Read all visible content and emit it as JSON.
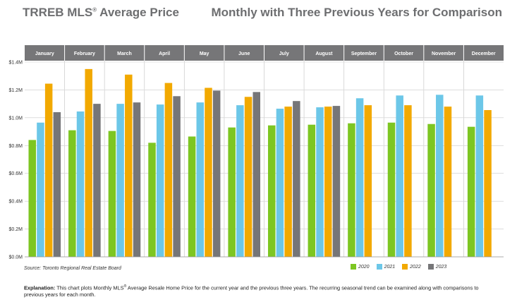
{
  "header": {
    "title_main": "TRREB MLS",
    "title_reg": "®",
    "title_rest": " Average Price",
    "subtitle": "Monthly with Three Previous Years for Comparison"
  },
  "source": "Source: Toronto Regional Real Estate Board",
  "explanation": {
    "label": "Explanation:",
    "text_a": " This chart plots Monthly MLS",
    "reg": "®",
    "text_b": " Average Resale Home Price for the current year and the previous three years. The recurring seasonal trend can be examined along with comparisons to previous years for each month."
  },
  "colors": {
    "2020": "#7dc622",
    "2021": "#6cc7e8",
    "2022": "#f2a900",
    "2023": "#767678",
    "header_band": "#767678",
    "grid": "#c9c9c9"
  },
  "chart_data": {
    "type": "bar",
    "categories": [
      "January",
      "February",
      "March",
      "April",
      "May",
      "June",
      "July",
      "August",
      "September",
      "October",
      "November",
      "December"
    ],
    "series": [
      {
        "name": "2020",
        "values": [
          0.84,
          0.91,
          0.905,
          0.82,
          0.865,
          0.93,
          0.945,
          0.95,
          0.96,
          0.965,
          0.955,
          0.935
        ]
      },
      {
        "name": "2021",
        "values": [
          0.965,
          1.045,
          1.1,
          1.095,
          1.11,
          1.09,
          1.065,
          1.075,
          1.14,
          1.16,
          1.165,
          1.16
        ]
      },
      {
        "name": "2022",
        "values": [
          1.245,
          1.35,
          1.31,
          1.25,
          1.215,
          1.15,
          1.08,
          1.08,
          1.09,
          1.09,
          1.08,
          1.055
        ]
      },
      {
        "name": "2023",
        "values": [
          1.04,
          1.1,
          1.11,
          1.155,
          1.195,
          1.185,
          1.12,
          1.085,
          null,
          null,
          null,
          null
        ]
      }
    ],
    "ylim": [
      0,
      1.4
    ],
    "yticks": [
      0,
      0.2,
      0.4,
      0.6,
      0.8,
      1.0,
      1.2,
      1.4
    ],
    "ytick_labels": [
      "$0.0M",
      "$0.2M",
      "$0.4M",
      "$0.6M",
      "$0.8M",
      "$1.0M",
      "$1.2M",
      "$1.4M"
    ],
    "grid": true,
    "legend": "bottom-right"
  }
}
